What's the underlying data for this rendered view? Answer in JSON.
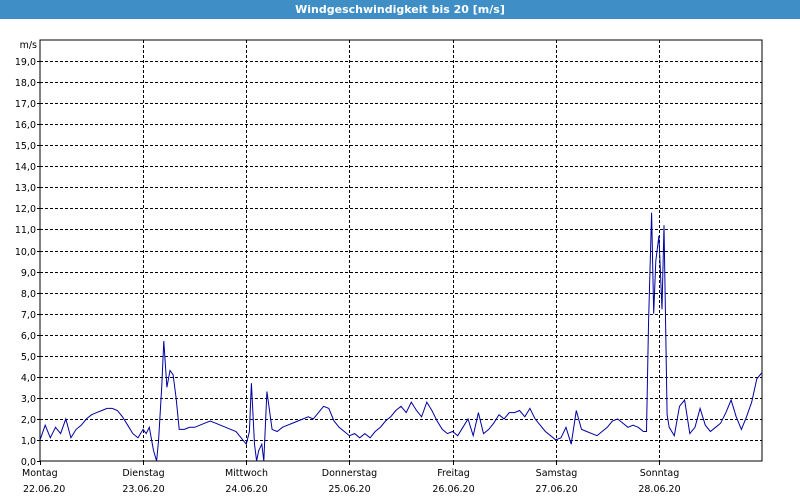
{
  "window": {
    "title": "Windgeschwindigkeit bis 20 [m/s]"
  },
  "chart_data": {
    "type": "line",
    "title": "Windgeschwindigkeit bis 20 [m/s]",
    "ylabel": "m/s",
    "xlabel": "",
    "ylim": [
      0,
      20
    ],
    "xlim": [
      0,
      7
    ],
    "y_ticks": [
      "0,0",
      "1,0",
      "2,0",
      "3,0",
      "4,0",
      "5,0",
      "6,0",
      "7,0",
      "8,0",
      "9,0",
      "10,0",
      "11,0",
      "12,0",
      "13,0",
      "14,0",
      "15,0",
      "16,0",
      "17,0",
      "18,0",
      "19,0"
    ],
    "x_ticks": [
      {
        "day": "Montag",
        "date": "22.06.20"
      },
      {
        "day": "Dienstag",
        "date": "23.06.20"
      },
      {
        "day": "Mittwoch",
        "date": "24.06.20"
      },
      {
        "day": "Donnerstag",
        "date": "25.06.20"
      },
      {
        "day": "Freitag",
        "date": "26.06.20"
      },
      {
        "day": "Samstag",
        "date": "27.06.20"
      },
      {
        "day": "Sonntag",
        "date": "28.06.20"
      }
    ],
    "grid": true,
    "grid_style": "dashed",
    "line_color": "#0000a0",
    "series": [
      {
        "x": [
          0.0,
          0.05,
          0.1,
          0.15,
          0.2,
          0.25,
          0.3,
          0.35,
          0.4,
          0.45,
          0.5,
          0.55,
          0.6,
          0.65,
          0.7,
          0.75,
          0.8,
          0.85,
          0.9,
          0.95,
          1.0,
          1.03,
          1.06,
          1.1,
          1.13,
          1.15,
          1.18,
          1.2,
          1.23,
          1.26,
          1.29,
          1.32,
          1.35,
          1.4,
          1.45,
          1.5,
          1.55,
          1.6,
          1.65,
          1.7,
          1.75,
          1.8,
          1.85,
          1.9,
          1.95,
          2.0,
          2.03,
          2.05,
          2.08,
          2.1,
          2.12,
          2.15,
          2.17,
          2.2,
          2.25,
          2.3,
          2.35,
          2.4,
          2.45,
          2.5,
          2.55,
          2.6,
          2.65,
          2.7,
          2.75,
          2.8,
          2.85,
          2.9,
          2.95,
          3.0,
          3.05,
          3.1,
          3.15,
          3.2,
          3.25,
          3.3,
          3.35,
          3.4,
          3.45,
          3.5,
          3.55,
          3.6,
          3.65,
          3.7,
          3.75,
          3.8,
          3.85,
          3.9,
          3.95,
          4.0,
          4.05,
          4.1,
          4.15,
          4.2,
          4.25,
          4.3,
          4.35,
          4.4,
          4.45,
          4.5,
          4.55,
          4.6,
          4.65,
          4.7,
          4.75,
          4.8,
          4.85,
          4.9,
          4.95,
          5.0,
          5.05,
          5.1,
          5.15,
          5.2,
          5.25,
          5.3,
          5.35,
          5.4,
          5.45,
          5.5,
          5.55,
          5.6,
          5.65,
          5.7,
          5.75,
          5.8,
          5.85,
          5.88,
          5.9,
          5.93,
          5.95,
          5.97,
          6.0,
          6.03,
          6.05,
          6.08,
          6.1,
          6.15,
          6.2,
          6.25,
          6.3,
          6.35,
          6.4,
          6.45,
          6.5,
          6.55,
          6.6,
          6.65,
          6.7,
          6.75,
          6.8,
          6.85,
          6.9,
          6.95,
          7.0
        ],
        "y": [
          1.0,
          1.7,
          1.1,
          1.6,
          1.3,
          2.0,
          1.1,
          1.5,
          1.7,
          2.0,
          2.2,
          2.3,
          2.4,
          2.5,
          2.5,
          2.4,
          2.1,
          1.7,
          1.3,
          1.1,
          1.5,
          1.3,
          1.6,
          0.5,
          0.0,
          1.0,
          3.5,
          5.7,
          3.5,
          4.3,
          4.1,
          3.0,
          1.5,
          1.5,
          1.6,
          1.6,
          1.7,
          1.8,
          1.9,
          1.8,
          1.7,
          1.6,
          1.5,
          1.4,
          1.1,
          0.8,
          1.4,
          3.7,
          0.8,
          0.0,
          0.5,
          0.8,
          0.0,
          3.3,
          1.5,
          1.4,
          1.6,
          1.7,
          1.8,
          1.9,
          2.0,
          2.1,
          2.0,
          2.3,
          2.6,
          2.5,
          1.9,
          1.6,
          1.4,
          1.2,
          1.3,
          1.1,
          1.3,
          1.1,
          1.4,
          1.6,
          1.9,
          2.1,
          2.4,
          2.6,
          2.3,
          2.8,
          2.4,
          2.1,
          2.8,
          2.4,
          1.9,
          1.5,
          1.3,
          1.4,
          1.2,
          1.6,
          2.0,
          1.2,
          2.3,
          1.3,
          1.5,
          1.8,
          2.2,
          2.0,
          2.3,
          2.3,
          2.4,
          2.1,
          2.5,
          2.0,
          1.7,
          1.4,
          1.2,
          1.0,
          1.1,
          1.6,
          0.8,
          2.4,
          1.5,
          1.4,
          1.3,
          1.2,
          1.4,
          1.6,
          1.9,
          2.0,
          1.8,
          1.6,
          1.7,
          1.6,
          1.4,
          1.4,
          6.5,
          11.8,
          7.0,
          9.5,
          10.7,
          7.2,
          11.2,
          2.2,
          1.6,
          1.2,
          2.6,
          2.9,
          1.3,
          1.6,
          2.5,
          1.7,
          1.4,
          1.6,
          1.8,
          2.3,
          2.9,
          2.1,
          1.5,
          2.1,
          2.8,
          3.9,
          4.2
        ]
      }
    ]
  }
}
